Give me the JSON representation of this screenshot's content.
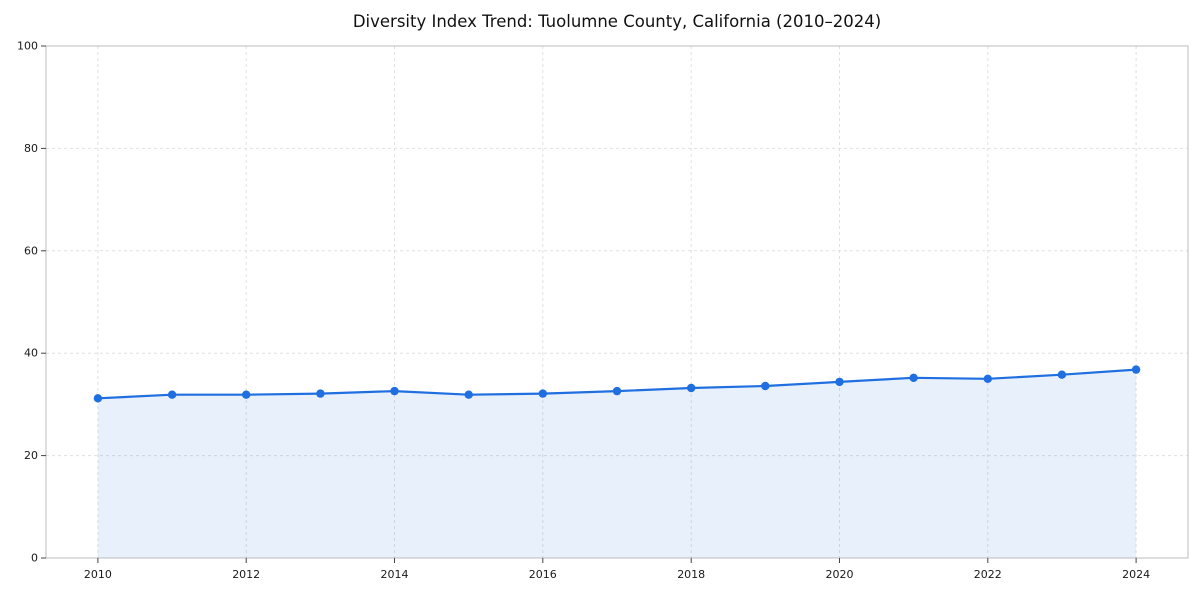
{
  "chart_data": {
    "type": "line",
    "title": "Diversity Index Trend: Tuolumne County, California (2010–2024)",
    "x": [
      2010,
      2011,
      2012,
      2013,
      2014,
      2015,
      2016,
      2017,
      2018,
      2019,
      2020,
      2021,
      2022,
      2023,
      2024
    ],
    "series": [
      {
        "name": "Diversity Index",
        "values": [
          31.2,
          31.9,
          31.9,
          32.1,
          32.6,
          31.9,
          32.1,
          32.6,
          33.2,
          33.6,
          34.4,
          35.2,
          35.0,
          35.8,
          36.8
        ]
      }
    ],
    "xlabel": "",
    "ylabel": "",
    "xlim": [
      2009.3,
      2024.7
    ],
    "ylim": [
      0,
      100
    ],
    "xticks": [
      2010,
      2012,
      2014,
      2016,
      2018,
      2020,
      2022,
      2024
    ],
    "yticks": [
      0,
      20,
      40,
      60,
      80,
      100
    ],
    "grid": true,
    "grid_style": "dashed",
    "legend": false,
    "line_color": "#1f6fe0",
    "marker_color": "#1f6fe0",
    "marker_shape": "circle",
    "fill_color": "#1f6fe0",
    "fill_opacity": 0.1,
    "grid_color": "#e0e0e0",
    "axis_box_color": "#bdbdbd",
    "tick_color": "#444444",
    "background": "#ffffff"
  }
}
